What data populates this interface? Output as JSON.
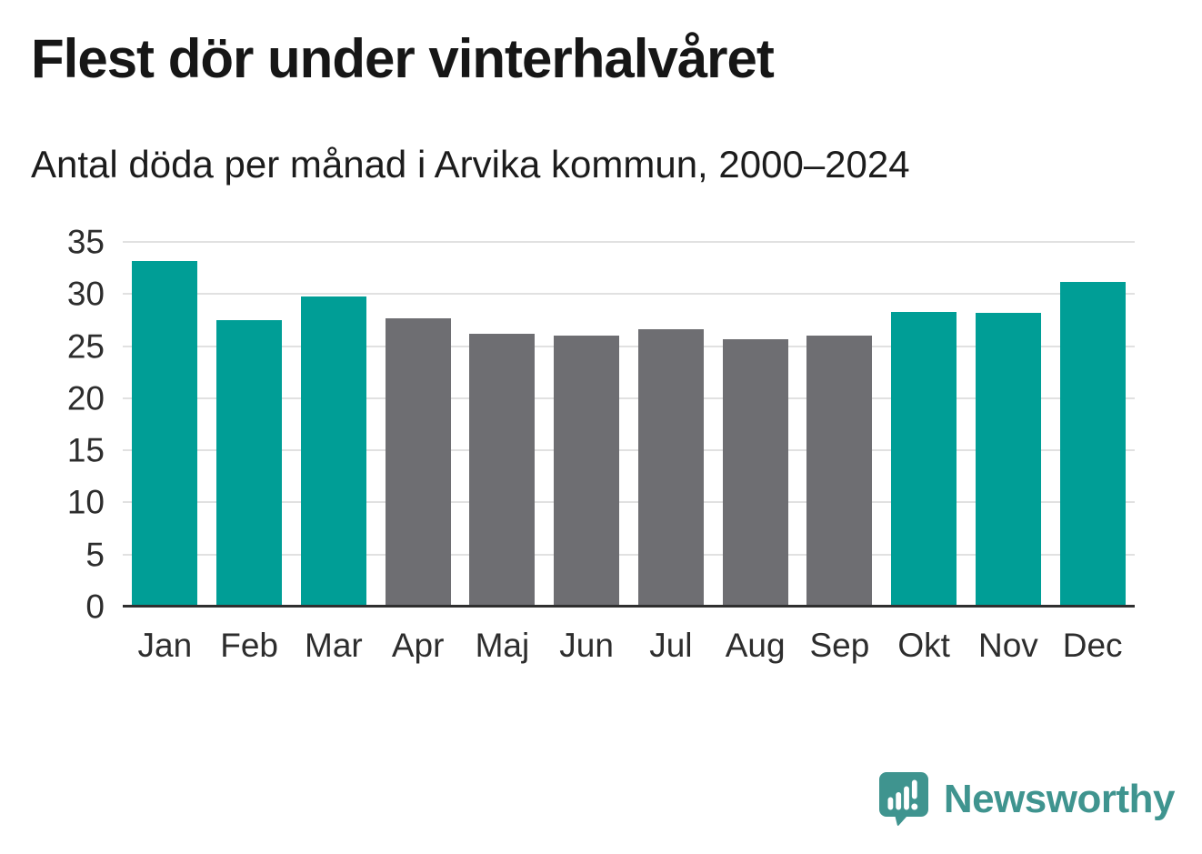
{
  "header": {
    "title": "Flest dör under vinterhalvåret",
    "subtitle": "Antal döda per månad i Arvika kommun, 2000–2024"
  },
  "chart_data": {
    "type": "bar",
    "title": "Flest dör under vinterhalvåret",
    "subtitle": "Antal döda per månad i Arvika kommun, 2000–2024",
    "categories": [
      "Jan",
      "Feb",
      "Mar",
      "Apr",
      "Maj",
      "Jun",
      "Jul",
      "Aug",
      "Sep",
      "Okt",
      "Nov",
      "Dec"
    ],
    "values": [
      33.2,
      27.5,
      29.8,
      27.7,
      26.2,
      26.0,
      26.6,
      25.7,
      26.0,
      28.3,
      28.2,
      31.2
    ],
    "bar_color_keys": [
      "winter",
      "winter",
      "winter",
      "summer",
      "summer",
      "summer",
      "summer",
      "summer",
      "summer",
      "winter",
      "winter",
      "winter"
    ],
    "colors": {
      "winter": "#009E96",
      "summer": "#6E6E72",
      "gridline": "#e1e1e1",
      "axis": "#2f2f2f",
      "tick_text": "#2d2d2d"
    },
    "xlabel": "",
    "ylabel": "",
    "ylim": [
      0,
      35
    ],
    "yticks": [
      0,
      5,
      10,
      15,
      20,
      25,
      30,
      35
    ],
    "grid": true,
    "legend": false
  },
  "branding": {
    "logo_text": "Newsworthy",
    "logo_color": "#3F948F",
    "logo_icon": "speech-bubble-bar-chart-icon"
  }
}
